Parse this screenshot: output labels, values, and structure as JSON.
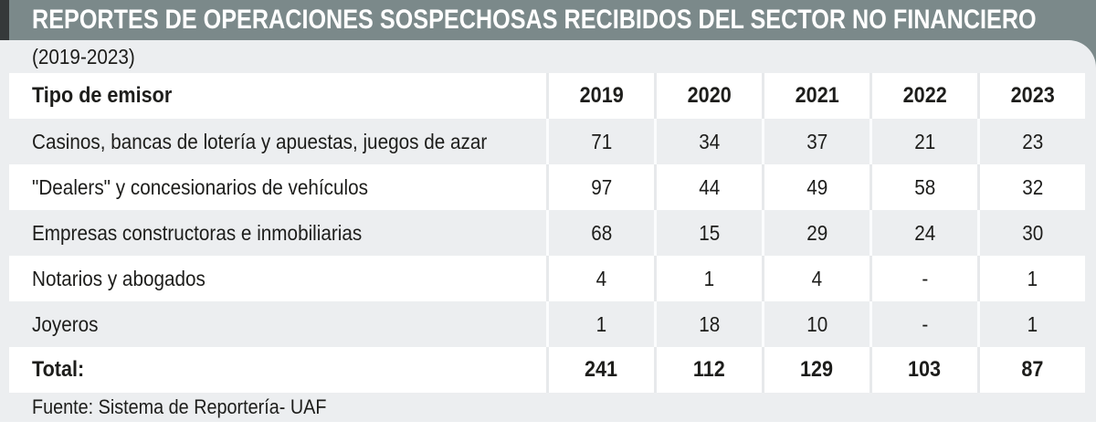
{
  "title": "REPORTES DE OPERACIONES SOSPECHOSAS RECIBIDOS DEL SECTOR NO FINANCIERO",
  "subtitle": "(2019-2023)",
  "source": "Fuente: Sistema de Reportería- UAF",
  "colors": {
    "title_bar": "#7b898a",
    "accent_dark": "#35393a",
    "panel_gray": "#eceef0",
    "row_white": "#ffffff",
    "title_text": "#ffffff",
    "body_text": "#1d1d1b"
  },
  "chart_data": {
    "type": "table",
    "title": "REPORTES DE OPERACIONES SOSPECHOSAS RECIBIDOS DEL SECTOR NO FINANCIERO (2019-2023)",
    "columns": [
      "Tipo de emisor",
      "2019",
      "2020",
      "2021",
      "2022",
      "2023"
    ],
    "rows": [
      {
        "label": "Casinos, bancas de lotería y apuestas, juegos de azar",
        "values": [
          "71",
          "34",
          "37",
          "21",
          "23"
        ]
      },
      {
        "label": "\"Dealers\" y concesionarios de vehículos",
        "values": [
          "97",
          "44",
          "49",
          "58",
          "32"
        ]
      },
      {
        "label": "Empresas constructoras e inmobiliarias",
        "values": [
          "68",
          "15",
          "29",
          "24",
          "30"
        ]
      },
      {
        "label": "Notarios y abogados",
        "values": [
          "4",
          "1",
          "4",
          "-",
          "1"
        ]
      },
      {
        "label": "Joyeros",
        "values": [
          "1",
          "18",
          "10",
          "-",
          "1"
        ]
      }
    ],
    "total": {
      "label": "Total:",
      "values": [
        "241",
        "112",
        "129",
        "103",
        "87"
      ]
    },
    "source": "Fuente: Sistema de Reportería- UAF",
    "legend_position": "none",
    "grid": "row-striping"
  }
}
